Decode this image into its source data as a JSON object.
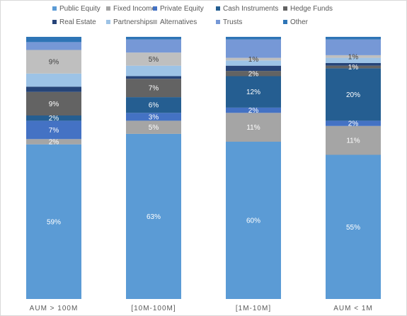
{
  "chart_data": {
    "type": "bar",
    "stacked": true,
    "normalized": true,
    "title": "",
    "xlabel": "",
    "ylabel": "",
    "ylim": [
      0,
      1
    ],
    "grid": false,
    "legend_position": "top",
    "categories": [
      "AUM > 100M",
      "[10M-100M]",
      "[1M-10M]",
      "AUM < 1M"
    ],
    "series": [
      {
        "name": "Public Equity",
        "color": "#5b9bd5",
        "values": [
          0.59,
          0.63,
          0.6,
          0.55
        ],
        "labels": [
          "59%",
          "63%",
          "60%",
          "55%"
        ]
      },
      {
        "name": "Fixed Income",
        "color": "#a5a5a5",
        "values": [
          0.02,
          0.05,
          0.11,
          0.11
        ],
        "labels": [
          "2%",
          "5%",
          "11%",
          "11%"
        ]
      },
      {
        "name": "Private Equity",
        "color": "#4472c4",
        "values": [
          0.07,
          0.03,
          0.02,
          0.02
        ],
        "labels": [
          "7%",
          "3%",
          "2%",
          "2%"
        ]
      },
      {
        "name": "Cash Instruments",
        "color": "#255e91",
        "values": [
          0.02,
          0.06,
          0.12,
          0.2
        ],
        "labels": [
          "2%",
          "6%",
          "12%",
          "20%"
        ]
      },
      {
        "name": "Hedge Funds",
        "color": "#636363",
        "values": [
          0.09,
          0.07,
          0.02,
          0.01
        ],
        "labels": [
          "9%",
          "7%",
          "2%",
          "1%"
        ]
      },
      {
        "name": "Real Estate",
        "color": "#264478",
        "values": [
          0.02,
          0.01,
          0.02,
          0.01
        ],
        "labels": [
          "",
          "",
          "",
          ""
        ]
      },
      {
        "name": "Partnerships",
        "color": "#9dc3e6",
        "values": [
          0.05,
          0.04,
          0.02,
          0.02
        ],
        "labels": [
          "",
          "",
          "",
          ""
        ]
      },
      {
        "name": "Alternatives",
        "color": "#bfbfbf",
        "values": [
          0.09,
          0.05,
          0.01,
          0.01
        ],
        "labels": [
          "9%",
          "5%",
          "1%",
          "1%"
        ]
      },
      {
        "name": "Trusts",
        "color": "#7698d6",
        "values": [
          0.03,
          0.05,
          0.07,
          0.06
        ],
        "labels": [
          "",
          "",
          "",
          ""
        ]
      },
      {
        "name": "Other",
        "color": "#2e75b6",
        "values": [
          0.02,
          0.01,
          0.01,
          0.01
        ],
        "labels": [
          "",
          "",
          "",
          ""
        ]
      }
    ]
  }
}
